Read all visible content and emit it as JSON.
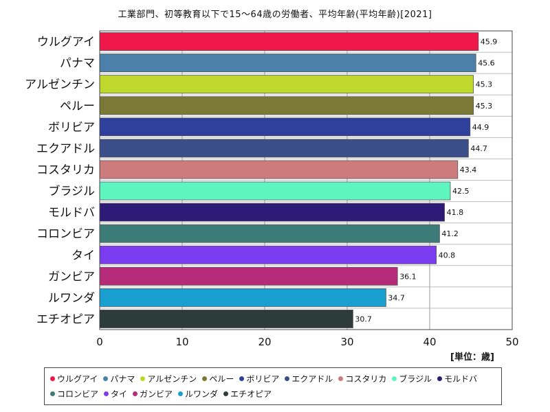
{
  "chart_data": {
    "type": "bar",
    "orientation": "horizontal",
    "title": "工業部門、初等教育以下で15～64歳の労働者、平均年齢(平均年齢)[2021]",
    "unit": "[単位：歳]",
    "xlim": [
      0,
      50
    ],
    "ticks": [
      "0",
      "10",
      "20",
      "30",
      "40",
      "50"
    ],
    "tick_values": [
      0,
      10,
      20,
      30,
      40,
      50
    ],
    "grid": true,
    "legend_position": "bottom",
    "categories": [
      "ウルグアイ",
      "パナマ",
      "アルゼンチン",
      "ペルー",
      "ボリビア",
      "エクアドル",
      "コスタリカ",
      "ブラジル",
      "モルドバ",
      "コロンビア",
      "タイ",
      "ガンビア",
      "ルワンダ",
      "エチオピア"
    ],
    "values": [
      45.9,
      45.6,
      45.3,
      45.3,
      44.9,
      44.7,
      43.4,
      42.5,
      41.8,
      41.2,
      40.8,
      36.1,
      34.7,
      30.7
    ],
    "value_labels": [
      "45.9",
      "45.6",
      "45.3",
      "45.3",
      "44.9",
      "44.7",
      "43.4",
      "42.5",
      "41.8",
      "41.2",
      "40.8",
      "36.1",
      "34.7",
      "30.7"
    ],
    "colors": [
      "#ef1848",
      "#4a80aa",
      "#c0d82e",
      "#7a7a36",
      "#2e3f9c",
      "#3c4e8a",
      "#cc7c7c",
      "#5ef5c0",
      "#2e1b78",
      "#3b7c78",
      "#7b3cf0",
      "#b52b7a",
      "#1aa0d0",
      "#2c3c38"
    ]
  }
}
